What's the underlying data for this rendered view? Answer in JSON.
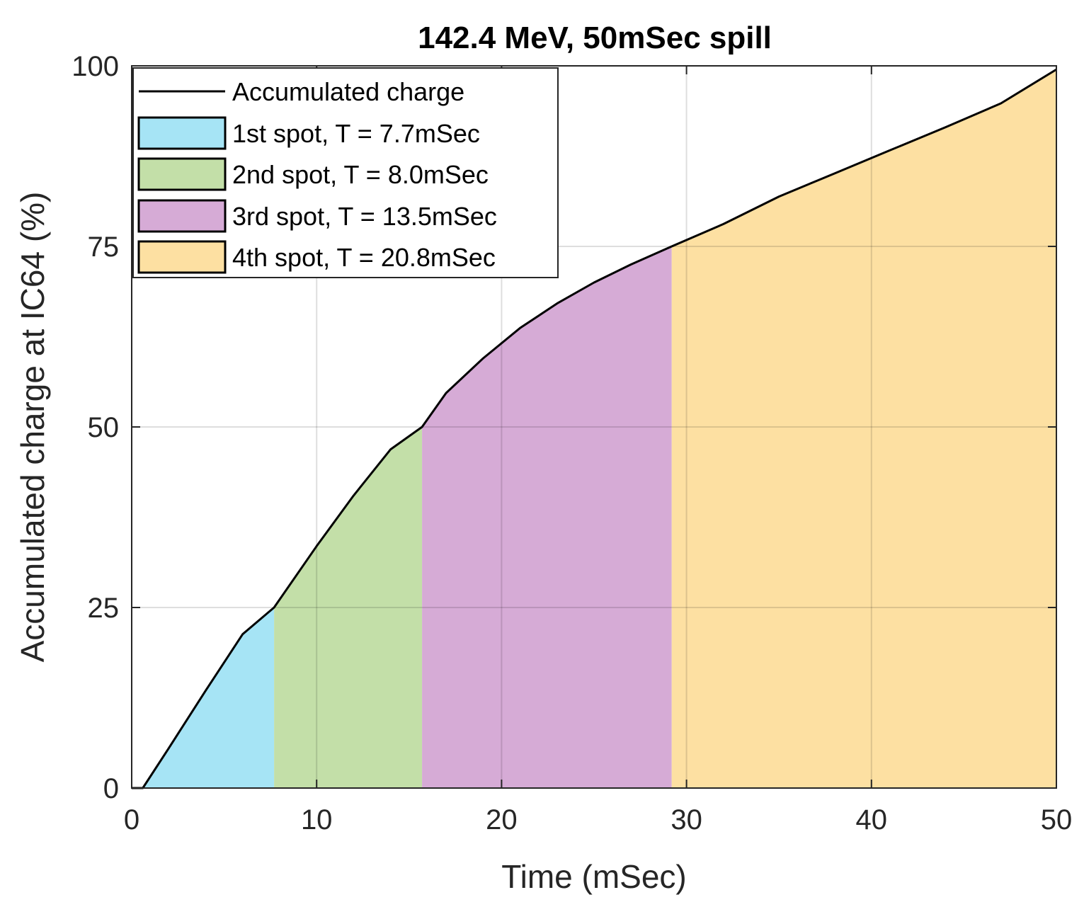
{
  "chart_data": {
    "type": "area",
    "title": "142.4 MeV, 50mSec spill",
    "xlabel": "Time (mSec)",
    "ylabel": "Accumulated charge at IC64 (%)",
    "xlim": [
      0,
      50
    ],
    "ylim": [
      0,
      100
    ],
    "xticks": [
      0,
      10,
      20,
      30,
      40,
      50
    ],
    "yticks": [
      0,
      25,
      50,
      75,
      100
    ],
    "xtick_labels": [
      "0",
      "10",
      "20",
      "30",
      "40",
      "50"
    ],
    "ytick_labels": [
      "0",
      "25",
      "50",
      "75",
      "100"
    ],
    "grid": true,
    "legend_position": "top-left",
    "line": {
      "name": "Accumulated charge",
      "color": "#000000",
      "x": [
        0,
        0.6,
        2,
        4,
        6,
        7.7,
        10,
        12,
        14,
        15.7,
        17,
        19,
        21,
        23,
        25,
        27,
        29.2,
        32,
        35,
        38,
        41,
        44,
        47,
        50
      ],
      "y": [
        0,
        0,
        5.5,
        13.5,
        21.3,
        25,
        33.5,
        40.5,
        46.9,
        50,
        54.7,
        59.5,
        63.7,
        67.1,
        70,
        72.5,
        75,
        78.1,
        81.9,
        85.1,
        88.3,
        91.5,
        94.8,
        99.5
      ]
    },
    "regions": [
      {
        "name": "1st spot, T = 7.7mSec",
        "start": 0.6,
        "end": 7.7,
        "color": "#a6e4f5"
      },
      {
        "name": "2nd spot, T = 8.0mSec",
        "start": 7.7,
        "end": 15.7,
        "color": "#c3dfa8"
      },
      {
        "name": "3rd spot, T = 13.5mSec",
        "start": 15.7,
        "end": 29.2,
        "color": "#d6abd6"
      },
      {
        "name": "4th spot, T = 20.8mSec",
        "start": 29.2,
        "end": 50,
        "color": "#fde0a2"
      }
    ],
    "legend": [
      "Accumulated charge",
      "1st spot, T = 7.7mSec",
      "2nd spot, T = 8.0mSec",
      "3rd spot, T = 13.5mSec",
      "4th spot, T = 20.8mSec"
    ]
  }
}
